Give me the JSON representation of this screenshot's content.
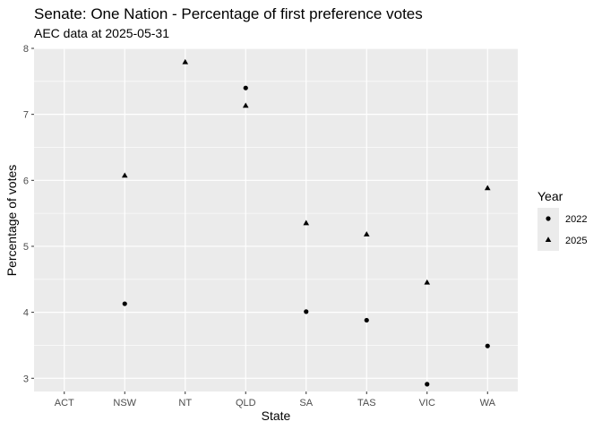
{
  "chart_data": {
    "type": "scatter",
    "title": "Senate: One Nation - Percentage of first preference votes",
    "subtitle": "AEC data at 2025-05-31",
    "xlabel": "State",
    "ylabel": "Percentage of votes",
    "categories": [
      "ACT",
      "NSW",
      "NT",
      "QLD",
      "SA",
      "TAS",
      "VIC",
      "WA"
    ],
    "ylim": [
      2.8,
      8.0
    ],
    "yticks": [
      3,
      4,
      5,
      6,
      7,
      8
    ],
    "legend": {
      "title": "Year",
      "position": "right"
    },
    "series": [
      {
        "name": "2022",
        "shape": "circle",
        "points": [
          {
            "x": "NSW",
            "y": 4.13
          },
          {
            "x": "QLD",
            "y": 7.4
          },
          {
            "x": "SA",
            "y": 4.01
          },
          {
            "x": "TAS",
            "y": 3.88
          },
          {
            "x": "VIC",
            "y": 2.91
          },
          {
            "x": "WA",
            "y": 3.49
          }
        ]
      },
      {
        "name": "2025",
        "shape": "triangle",
        "points": [
          {
            "x": "NSW",
            "y": 6.07
          },
          {
            "x": "NT",
            "y": 7.79
          },
          {
            "x": "QLD",
            "y": 7.13
          },
          {
            "x": "SA",
            "y": 5.35
          },
          {
            "x": "TAS",
            "y": 5.18
          },
          {
            "x": "VIC",
            "y": 4.45
          },
          {
            "x": "WA",
            "y": 5.88
          }
        ]
      }
    ]
  }
}
